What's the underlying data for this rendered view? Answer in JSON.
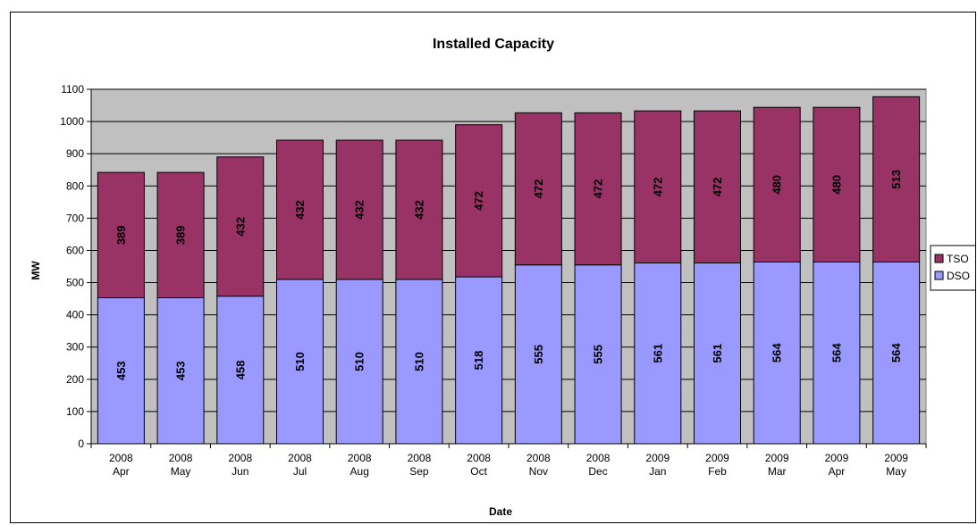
{
  "chart_data": {
    "type": "bar",
    "stacked": true,
    "title": "Installed Capacity",
    "xlabel": "Date",
    "ylabel": "MW",
    "ylim": [
      0,
      1100
    ],
    "ytick_step": 100,
    "grid": true,
    "legend_position": "right",
    "categories": [
      [
        "2008",
        "Apr"
      ],
      [
        "2008",
        "May"
      ],
      [
        "2008",
        "Jun"
      ],
      [
        "2008",
        "Jul"
      ],
      [
        "2008",
        "Aug"
      ],
      [
        "2008",
        "Sep"
      ],
      [
        "2008",
        "Oct"
      ],
      [
        "2008",
        "Nov"
      ],
      [
        "2008",
        "Dec"
      ],
      [
        "2009",
        "Jan"
      ],
      [
        "2009",
        "Feb"
      ],
      [
        "2009",
        "Mar"
      ],
      [
        "2009",
        "Apr"
      ],
      [
        "2009",
        "May"
      ]
    ],
    "series": [
      {
        "name": "DSO",
        "color": "#9999ff",
        "values": [
          453,
          453,
          458,
          510,
          510,
          510,
          518,
          555,
          555,
          561,
          561,
          564,
          564,
          564
        ]
      },
      {
        "name": "TSO",
        "color": "#993366",
        "values": [
          389,
          389,
          432,
          432,
          432,
          432,
          472,
          472,
          472,
          472,
          472,
          480,
          480,
          513
        ]
      }
    ],
    "plot_background": "#c0c0c0",
    "legend_order": [
      "TSO",
      "DSO"
    ]
  }
}
